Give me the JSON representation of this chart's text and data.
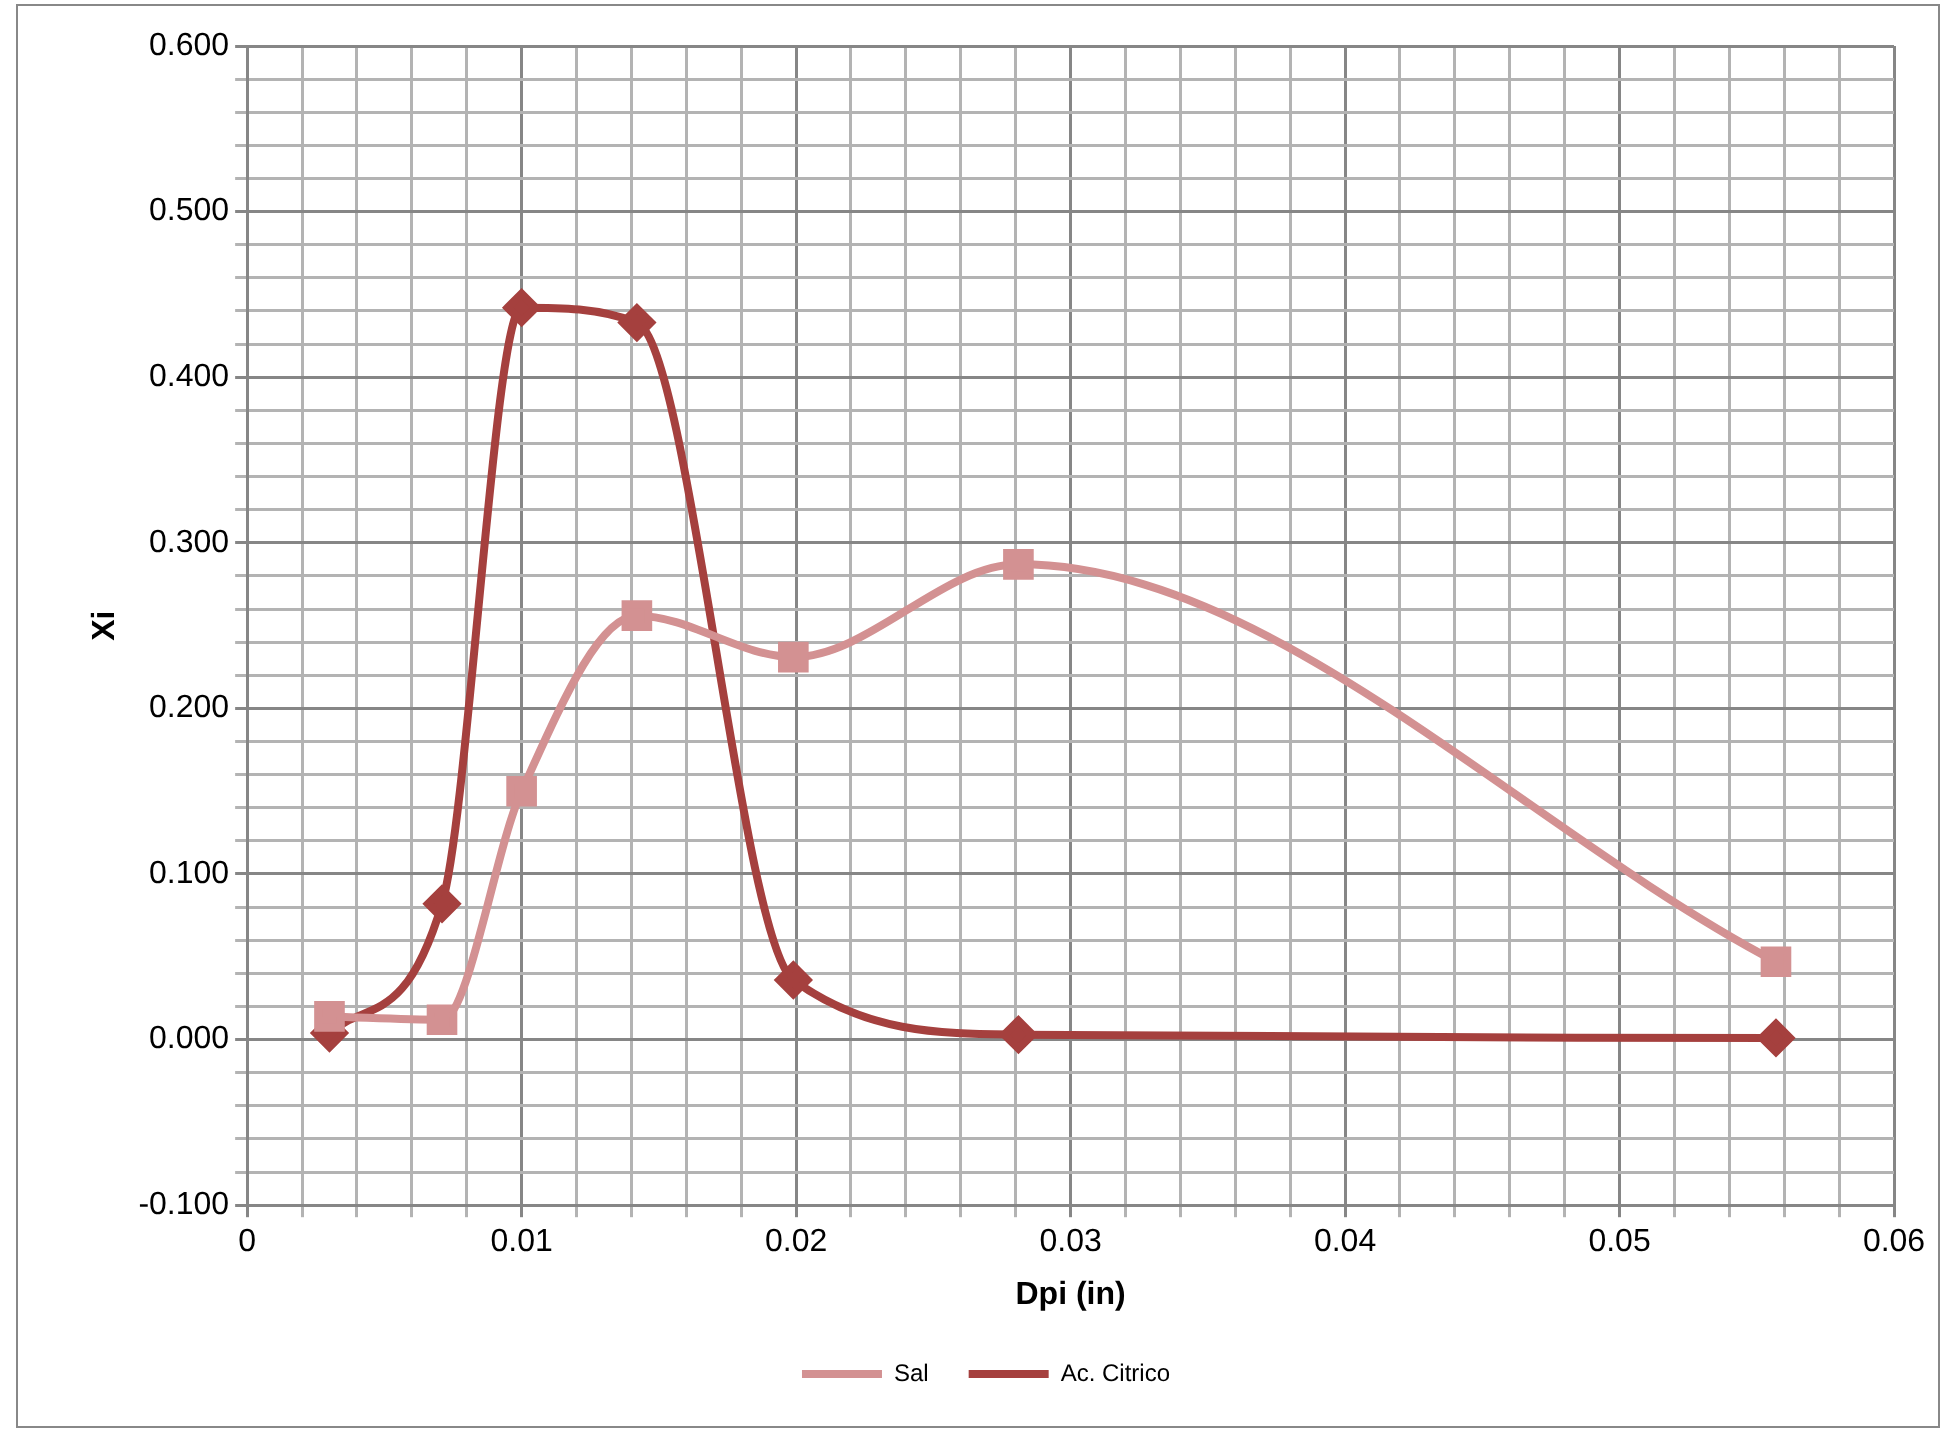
{
  "chart_data": {
    "type": "line",
    "xlabel": "Dpi (in)",
    "ylabel": "Xi",
    "x": [
      0.003,
      0.0071,
      0.01,
      0.0142,
      0.0199,
      0.0281,
      0.0557
    ],
    "series": [
      {
        "name": "Sal",
        "color": "#d39192",
        "marker": "square",
        "values": [
          0.014,
          0.012,
          0.15,
          0.256,
          0.231,
          0.287,
          0.047
        ]
      },
      {
        "name": "Ac. Citrico",
        "color": "#a5403e",
        "marker": "diamond",
        "values": [
          0.004,
          0.082,
          0.442,
          0.433,
          0.036,
          0.003,
          0.001
        ]
      }
    ],
    "xlim": [
      0,
      0.06
    ],
    "xticks": [
      {
        "value": 0,
        "label": "0"
      },
      {
        "value": 0.002,
        "label": null
      },
      {
        "value": 0.004,
        "label": null
      },
      {
        "value": 0.006,
        "label": null
      },
      {
        "value": 0.008,
        "label": null
      },
      {
        "value": 0.01,
        "label": "0.01"
      },
      {
        "value": 0.012,
        "label": null
      },
      {
        "value": 0.014,
        "label": null
      },
      {
        "value": 0.016,
        "label": null
      },
      {
        "value": 0.018,
        "label": null
      },
      {
        "value": 0.02,
        "label": "0.02"
      },
      {
        "value": 0.022,
        "label": null
      },
      {
        "value": 0.024,
        "label": null
      },
      {
        "value": 0.026,
        "label": null
      },
      {
        "value": 0.028,
        "label": null
      },
      {
        "value": 0.03,
        "label": "0.03"
      },
      {
        "value": 0.032,
        "label": null
      },
      {
        "value": 0.034,
        "label": null
      },
      {
        "value": 0.036,
        "label": null
      },
      {
        "value": 0.038,
        "label": null
      },
      {
        "value": 0.04,
        "label": "0.04"
      },
      {
        "value": 0.042,
        "label": null
      },
      {
        "value": 0.044,
        "label": null
      },
      {
        "value": 0.046,
        "label": null
      },
      {
        "value": 0.048,
        "label": null
      },
      {
        "value": 0.05,
        "label": "0.05"
      },
      {
        "value": 0.052,
        "label": null
      },
      {
        "value": 0.054,
        "label": null
      },
      {
        "value": 0.056,
        "label": null
      },
      {
        "value": 0.058,
        "label": null
      },
      {
        "value": 0.06,
        "label": "0.06"
      }
    ],
    "ylim": [
      -0.1,
      0.6
    ],
    "yticks": [
      {
        "value": -0.1,
        "label": "-0.100"
      },
      {
        "value": -0.08,
        "label": null
      },
      {
        "value": -0.06,
        "label": null
      },
      {
        "value": -0.04,
        "label": null
      },
      {
        "value": -0.02,
        "label": null
      },
      {
        "value": 0,
        "label": "0.000"
      },
      {
        "value": 0.02,
        "label": null
      },
      {
        "value": 0.04,
        "label": null
      },
      {
        "value": 0.06,
        "label": null
      },
      {
        "value": 0.08,
        "label": null
      },
      {
        "value": 0.1,
        "label": "0.100"
      },
      {
        "value": 0.12,
        "label": null
      },
      {
        "value": 0.14,
        "label": null
      },
      {
        "value": 0.16,
        "label": null
      },
      {
        "value": 0.18,
        "label": null
      },
      {
        "value": 0.2,
        "label": "0.200"
      },
      {
        "value": 0.22,
        "label": null
      },
      {
        "value": 0.24,
        "label": null
      },
      {
        "value": 0.26,
        "label": null
      },
      {
        "value": 0.28,
        "label": null
      },
      {
        "value": 0.3,
        "label": "0.300"
      },
      {
        "value": 0.32,
        "label": null
      },
      {
        "value": 0.34,
        "label": null
      },
      {
        "value": 0.36,
        "label": null
      },
      {
        "value": 0.38,
        "label": null
      },
      {
        "value": 0.4,
        "label": "0.400"
      },
      {
        "value": 0.42,
        "label": null
      },
      {
        "value": 0.44,
        "label": null
      },
      {
        "value": 0.46,
        "label": null
      },
      {
        "value": 0.48,
        "label": null
      },
      {
        "value": 0.5,
        "label": "0.500"
      },
      {
        "value": 0.52,
        "label": null
      },
      {
        "value": 0.54,
        "label": null
      },
      {
        "value": 0.56,
        "label": null
      },
      {
        "value": 0.58,
        "label": null
      },
      {
        "value": 0.6,
        "label": "0.600"
      }
    ],
    "grid": true,
    "legend": "bottom",
    "line_style": "solid"
  }
}
